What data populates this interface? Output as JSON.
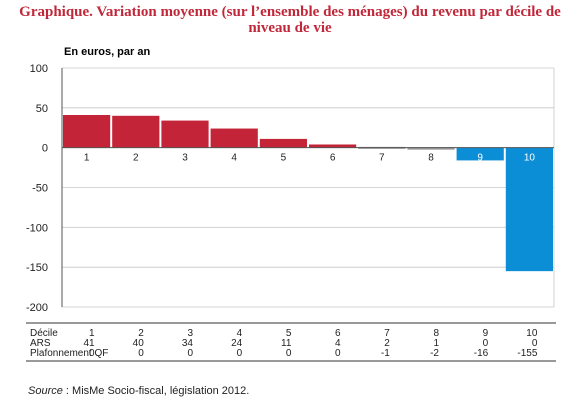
{
  "title": "Graphique. Variation moyenne (sur l’ensemble des ménages) du revenu par décile de niveau de vie",
  "unit_label": "En euros, par an",
  "source": {
    "label": "Source",
    "text": " : MisMe Socio-fiscal, législation 2012."
  },
  "colors": {
    "ars": "#c32438",
    "qf": "#0c8ed6",
    "grid": "#c8c8c8",
    "zero_bar": "#9a9a9a"
  },
  "table": {
    "header_label": "Décile",
    "rows": [
      {
        "label": "ARS",
        "key": "ars"
      },
      {
        "label": "Plafonnement QF",
        "key": "qf"
      }
    ]
  },
  "chart_data": {
    "type": "bar",
    "categories": [
      "1",
      "2",
      "3",
      "4",
      "5",
      "6",
      "7",
      "8",
      "9",
      "10"
    ],
    "series": [
      {
        "name": "ARS",
        "values": [
          41,
          40,
          34,
          24,
          11,
          4,
          2,
          1,
          0,
          0
        ]
      },
      {
        "name": "Plafonnement QF",
        "values": [
          0,
          0,
          0,
          0,
          0,
          0,
          -1,
          -2,
          -16,
          -155
        ]
      }
    ],
    "net_values": [
      41,
      40,
      34,
      24,
      11,
      4,
      1,
      -1,
      -16,
      -155
    ],
    "ylim": [
      -200,
      100
    ],
    "yticks": [
      100,
      50,
      0,
      -50,
      -100,
      -150,
      -200
    ],
    "grid": true
  }
}
